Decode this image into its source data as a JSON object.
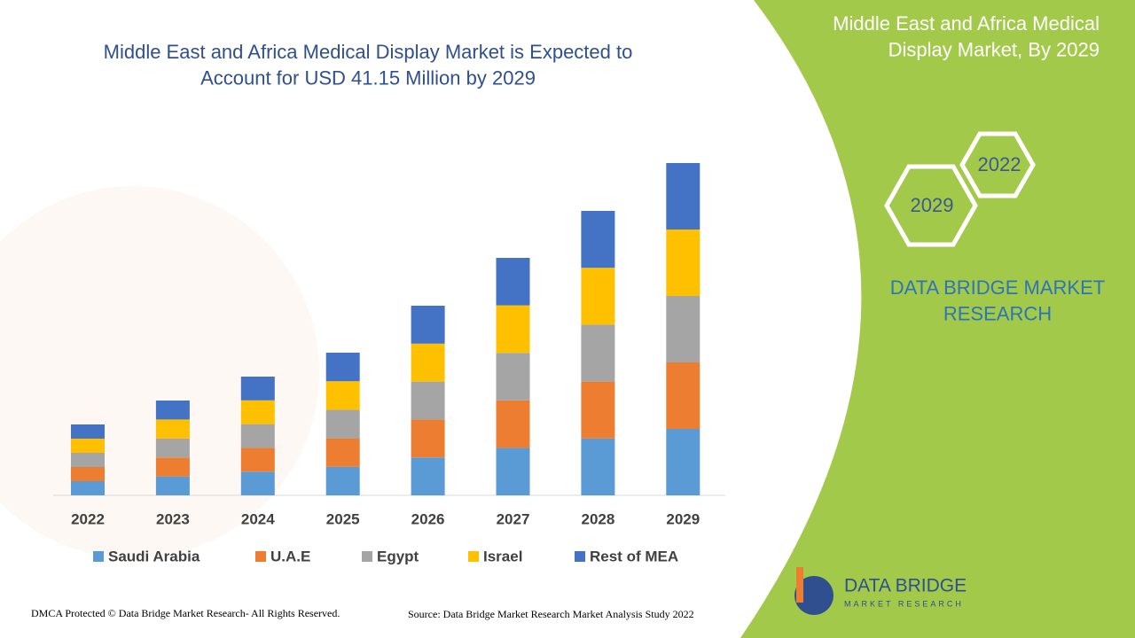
{
  "chart_data": {
    "type": "stacked_bar",
    "title": "Middle East and Africa Medical Display Market is Expected to Account for USD 41.15 Million by 2029",
    "categories": [
      "2022",
      "2023",
      "2024",
      "2025",
      "2026",
      "2027",
      "2028",
      "2029"
    ],
    "series": [
      {
        "name": "Saudi Arabia",
        "color": "#5b9bd5",
        "values": [
          16,
          21.4,
          26.8,
          32.2,
          42.8,
          53.6,
          64.2,
          75
        ]
      },
      {
        "name": "U.A.E",
        "color": "#ed7d31",
        "values": [
          16,
          21.4,
          26.8,
          32.2,
          42.8,
          53.6,
          64.2,
          75
        ]
      },
      {
        "name": "Egypt",
        "color": "#a5a5a5",
        "values": [
          16,
          21.4,
          26.8,
          32.2,
          42.8,
          53.6,
          64.2,
          75
        ]
      },
      {
        "name": "Israel",
        "color": "#ffc000",
        "values": [
          16,
          21.4,
          26.8,
          32.2,
          42.8,
          53.6,
          64.2,
          75
        ]
      },
      {
        "name": "Rest of MEA",
        "color": "#4472c4",
        "values": [
          16,
          21.4,
          26.8,
          32.2,
          42.8,
          53.6,
          64.2,
          75
        ]
      }
    ],
    "legend": "bottom"
  },
  "panel": {
    "title": "Middle East and Africa Medical Display Market, By 2029",
    "hex_back": "2022",
    "hex_front": "2029",
    "brand": "DATA BRIDGE MARKET RESEARCH"
  },
  "logo": {
    "name": "DATA BRIDGE",
    "tagline": "MARKET RESEARCH"
  },
  "footer": {
    "copyright": "DMCA Protected © Data Bridge Market Research- All Rights Reserved.",
    "source": "Source: Data Bridge Market Research Market Analysis Study 2022"
  }
}
